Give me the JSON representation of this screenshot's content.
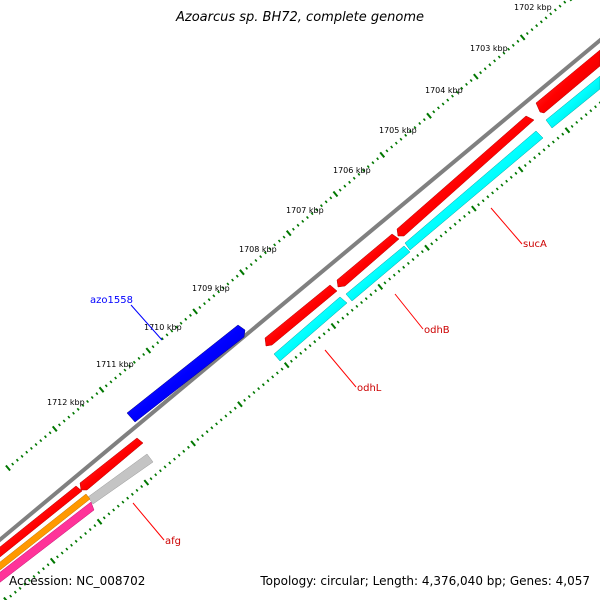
{
  "title": "Azoarcus sp. BH72, complete genome",
  "footer": {
    "accession": "Accession: NC_008702",
    "summary": "Topology: circular; Length: 4,376,040 bp; Genes: 4,057"
  },
  "ruler": {
    "labels": [
      "1702 kbp",
      "1703 kbp",
      "1704 kbp",
      "1705 kbp",
      "1706 kbp",
      "1707 kbp",
      "1708 kbp",
      "1709 kbp",
      "1710 kbp",
      "1711 kbp",
      "1712 kbp"
    ]
  },
  "genes": [
    {
      "name": "azo1558",
      "color": "#0000ff"
    },
    {
      "name": "sucA",
      "color": "#ff0000"
    },
    {
      "name": "odhB",
      "color": "#ff0000"
    },
    {
      "name": "odhL",
      "color": "#ff0000"
    },
    {
      "name": "afg",
      "color": "#ff0000"
    }
  ],
  "colors": {
    "backbone": "#808080",
    "forward_red": "#ff0000",
    "reverse_cyan": "#00ffff",
    "blue": "#0000ff",
    "gray": "#c0c0c0",
    "orange": "#ff9900",
    "magenta": "#ff3399",
    "tick_green": "#007700"
  }
}
